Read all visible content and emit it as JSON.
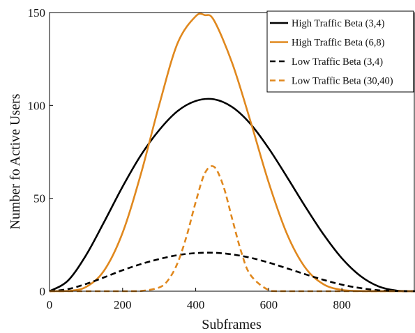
{
  "chart_data": {
    "type": "line",
    "xlabel": "Subframes",
    "ylabel": "Number fo Active Users",
    "xlim": [
      0,
      1000
    ],
    "ylim": [
      0,
      150
    ],
    "xticks": [
      0,
      200,
      400,
      600,
      800
    ],
    "yticks": [
      0,
      50,
      100,
      150
    ],
    "legend_position": "top-right",
    "grid": false,
    "series": [
      {
        "name": "High Traffic Beta (3,4)",
        "color": "#000000",
        "style": "solid",
        "x": [
          0,
          50,
          100,
          150,
          200,
          250,
          300,
          350,
          400,
          450,
          500,
          550,
          600,
          650,
          700,
          750,
          800,
          850,
          900,
          950,
          1000
        ],
        "y": [
          0,
          5.6,
          19.4,
          37.5,
          56.3,
          73.2,
          86.7,
          96.9,
          102.4,
          103.3,
          99.1,
          90.0,
          76.8,
          61.4,
          45.5,
          30.5,
          17.7,
          8.3,
          2.6,
          0.3,
          0
        ]
      },
      {
        "name": "High Traffic Beta (6,8)",
        "color": "#E0881E",
        "style": "solid",
        "x": [
          0,
          50,
          100,
          150,
          200,
          250,
          300,
          350,
          400,
          425,
          450,
          500,
          550,
          600,
          650,
          700,
          750,
          800,
          850,
          900,
          1000
        ],
        "y": [
          0,
          0.1,
          2.3,
          11.3,
          31.5,
          63.1,
          100.2,
          133.3,
          148.0,
          148.6,
          145.8,
          122.7,
          91.4,
          58.3,
          30.7,
          12.6,
          3.7,
          0.7,
          0.1,
          0,
          0
        ]
      },
      {
        "name": "Low Traffic Beta (3,4)",
        "color": "#000000",
        "style": "dashed",
        "x": [
          0,
          50,
          100,
          150,
          200,
          250,
          300,
          350,
          400,
          450,
          500,
          550,
          600,
          650,
          700,
          750,
          800,
          850,
          900,
          950,
          1000
        ],
        "y": [
          0,
          1.1,
          3.9,
          7.5,
          11.3,
          14.6,
          17.3,
          19.4,
          20.5,
          20.7,
          19.8,
          18.0,
          15.4,
          12.3,
          9.1,
          6.1,
          3.5,
          1.7,
          0.5,
          0.1,
          0
        ]
      },
      {
        "name": "Low Traffic Beta (30,40)",
        "color": "#E0881E",
        "style": "dashed",
        "x": [
          0,
          200,
          250,
          300,
          325,
          350,
          375,
          400,
          425,
          450,
          475,
          500,
          525,
          550,
          600,
          650,
          1000
        ],
        "y": [
          0,
          0,
          0.1,
          2.0,
          6.1,
          15.0,
          29.6,
          48.0,
          63.5,
          67.0,
          57.0,
          38.8,
          20.9,
          8.7,
          0.6,
          0,
          0
        ]
      }
    ]
  }
}
